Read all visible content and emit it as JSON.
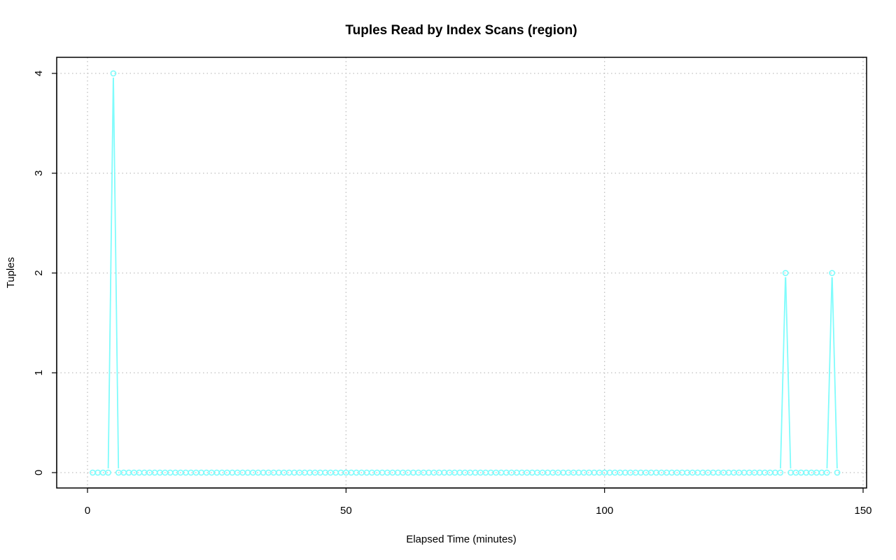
{
  "chart_data": {
    "type": "line",
    "title": "Tuples Read by Index Scans (region)",
    "xlabel": "Elapsed Time (minutes)",
    "ylabel": "Tuples",
    "xlim": [
      0,
      150
    ],
    "ylim": [
      0,
      4
    ],
    "x_ticks": [
      0,
      50,
      100,
      150
    ],
    "y_ticks": [
      0,
      1,
      2,
      3,
      4
    ],
    "grid": true,
    "series": [
      {
        "color": "#7ffcfc",
        "x": [
          1,
          2,
          3,
          4,
          5,
          6,
          7,
          8,
          9,
          10,
          11,
          12,
          13,
          14,
          15,
          16,
          17,
          18,
          19,
          20,
          21,
          22,
          23,
          24,
          25,
          26,
          27,
          28,
          29,
          30,
          31,
          32,
          33,
          34,
          35,
          36,
          37,
          38,
          39,
          40,
          41,
          42,
          43,
          44,
          45,
          46,
          47,
          48,
          49,
          50,
          51,
          52,
          53,
          54,
          55,
          56,
          57,
          58,
          59,
          60,
          61,
          62,
          63,
          64,
          65,
          66,
          67,
          68,
          69,
          70,
          71,
          72,
          73,
          74,
          75,
          76,
          77,
          78,
          79,
          80,
          81,
          82,
          83,
          84,
          85,
          86,
          87,
          88,
          89,
          90,
          91,
          92,
          93,
          94,
          95,
          96,
          97,
          98,
          99,
          100,
          101,
          102,
          103,
          104,
          105,
          106,
          107,
          108,
          109,
          110,
          111,
          112,
          113,
          114,
          115,
          116,
          117,
          118,
          119,
          120,
          121,
          122,
          123,
          124,
          125,
          126,
          127,
          128,
          129,
          130,
          131,
          132,
          133,
          134,
          135,
          136,
          137,
          138,
          139,
          140,
          141,
          142,
          143,
          144,
          145
        ],
        "y": [
          0,
          0,
          0,
          0,
          4,
          0,
          0,
          0,
          0,
          0,
          0,
          0,
          0,
          0,
          0,
          0,
          0,
          0,
          0,
          0,
          0,
          0,
          0,
          0,
          0,
          0,
          0,
          0,
          0,
          0,
          0,
          0,
          0,
          0,
          0,
          0,
          0,
          0,
          0,
          0,
          0,
          0,
          0,
          0,
          0,
          0,
          0,
          0,
          0,
          0,
          0,
          0,
          0,
          0,
          0,
          0,
          0,
          0,
          0,
          0,
          0,
          0,
          0,
          0,
          0,
          0,
          0,
          0,
          0,
          0,
          0,
          0,
          0,
          0,
          0,
          0,
          0,
          0,
          0,
          0,
          0,
          0,
          0,
          0,
          0,
          0,
          0,
          0,
          0,
          0,
          0,
          0,
          0,
          0,
          0,
          0,
          0,
          0,
          0,
          0,
          0,
          0,
          0,
          0,
          0,
          0,
          0,
          0,
          0,
          0,
          0,
          0,
          0,
          0,
          0,
          0,
          0,
          0,
          0,
          0,
          0,
          0,
          0,
          0,
          0,
          0,
          0,
          0,
          0,
          0,
          0,
          0,
          0,
          0,
          2,
          0,
          0,
          0,
          0,
          0,
          0,
          0,
          0,
          2,
          0
        ]
      }
    ]
  }
}
